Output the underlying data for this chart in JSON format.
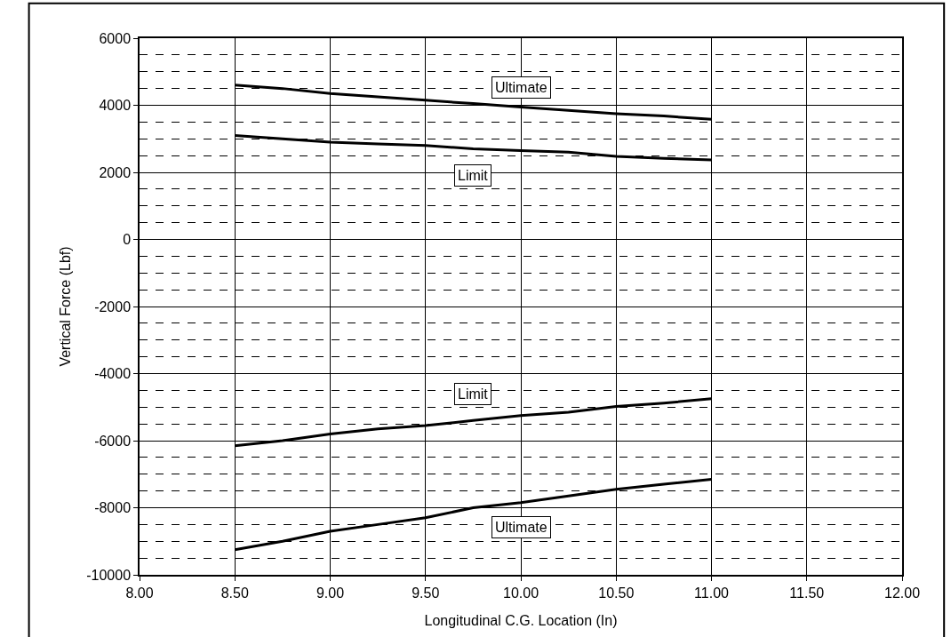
{
  "chart_data": {
    "type": "line",
    "xlabel": "Longitudinal C.G. Location (In)",
    "ylabel": "Vertical Force (Lbf)",
    "x": [
      8.5,
      8.75,
      9.0,
      9.25,
      9.5,
      9.75,
      10.0,
      10.25,
      10.5,
      10.75,
      11.0
    ],
    "series": [
      {
        "name": "Ultimate",
        "color": "#000000",
        "values": [
          4600,
          4500,
          4350,
          4250,
          4150,
          4050,
          3950,
          3850,
          3750,
          3680,
          3580
        ]
      },
      {
        "name": "Limit",
        "color": "#000000",
        "values": [
          3100,
          3000,
          2900,
          2850,
          2800,
          2700,
          2650,
          2600,
          2480,
          2420,
          2370
        ]
      },
      {
        "name": "Limit",
        "color": "#000000",
        "values": [
          -6150,
          -6000,
          -5800,
          -5650,
          -5550,
          -5400,
          -5250,
          -5150,
          -4980,
          -4880,
          -4750
        ]
      },
      {
        "name": "Ultimate",
        "color": "#000000",
        "values": [
          -9250,
          -9000,
          -8700,
          -8500,
          -8300,
          -8000,
          -7850,
          -7650,
          -7450,
          -7300,
          -7150
        ]
      }
    ],
    "xlim": [
      8.0,
      12.0
    ],
    "xticks": [
      {
        "value": 8.0,
        "label": "8.00"
      },
      {
        "value": 8.5,
        "label": "8.50"
      },
      {
        "value": 9.0,
        "label": "9.00"
      },
      {
        "value": 9.5,
        "label": "9.50"
      },
      {
        "value": 10.0,
        "label": "10.00"
      },
      {
        "value": 10.5,
        "label": "10.50"
      },
      {
        "value": 11.0,
        "label": "11.00"
      },
      {
        "value": 11.5,
        "label": "11.50"
      },
      {
        "value": 12.0,
        "label": "12.00"
      }
    ],
    "ylim": [
      -10000,
      6000
    ],
    "yticks": [
      -10000,
      -8000,
      -6000,
      -4000,
      -2000,
      0,
      2000,
      4000,
      6000
    ],
    "grid": true,
    "legend": false,
    "marker": "none",
    "line_style": "solid"
  }
}
